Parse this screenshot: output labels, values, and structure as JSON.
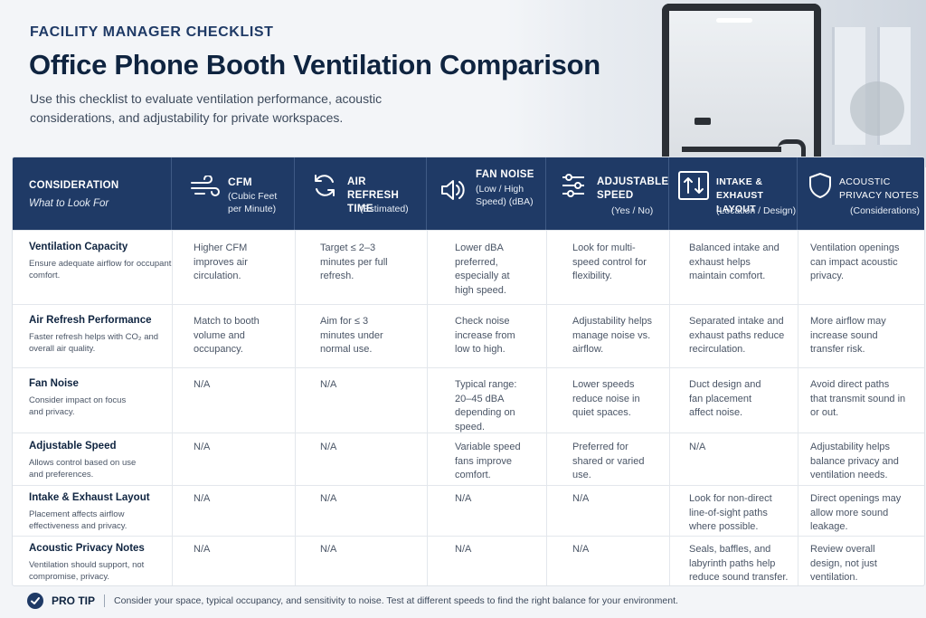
{
  "header": {
    "eyebrow": "FACILITY MANAGER CHECKLIST",
    "title": "Office Phone Booth Ventilation Comparison",
    "intro": "Use this checklist to evaluate ventilation performance, acoustic considerations, and adjustability for private workspaces."
  },
  "columns": [
    {
      "label": "CONSIDERATION",
      "sub": "What to Look For",
      "icon": "none"
    },
    {
      "label": "CFM",
      "sub": "(Cubic Feet per Minute)",
      "icon": "airflow-icon"
    },
    {
      "label": "AIR REFRESH TIME",
      "sub": "(Estimated)",
      "icon": "refresh-icon"
    },
    {
      "label": "FAN NOISE",
      "sub": "(Low / High Speed) (dBA)",
      "icon": "speaker-icon"
    },
    {
      "label": "ADJUSTABLE SPEED",
      "sub": "(Yes / No)",
      "icon": "sliders-icon"
    },
    {
      "label": "INTAKE & EXHAUST LAYOUT",
      "sub": "(Location / Design)",
      "icon": "arrows-updown-icon"
    },
    {
      "label": "ACOUSTIC PRIVACY NOTES",
      "sub": "(Considerations)",
      "icon": "shield-icon"
    }
  ],
  "rows": [
    {
      "name": "Ventilation Capacity",
      "desc": "Ensure adequate airflow for occupant comfort.",
      "cells": [
        "Higher CFM improves air circulation.",
        "Target ≤ 2–3 minutes per full refresh.",
        "Lower dBA preferred, especially at high speed.",
        "Look for multi-speed control for flexibility.",
        "Balanced intake and exhaust helps maintain comfort.",
        "Ventilation openings can impact acoustic privacy."
      ]
    },
    {
      "name": "Air Refresh Performance",
      "desc": "Faster refresh helps with CO₂ and overall air quality.",
      "cells": [
        "Match to booth volume and occupancy.",
        "Aim for ≤ 3 minutes under normal use.",
        "Check noise increase from low to high.",
        "Adjustability helps manage noise vs. airflow.",
        "Separated intake and exhaust paths reduce recirculation.",
        "More airflow may increase sound transfer risk."
      ]
    },
    {
      "name": "Fan Noise",
      "desc": "Consider impact on focus and privacy.",
      "cells": [
        "N/A",
        "N/A",
        "Typical range: 20–45 dBA depending on speed.",
        "Lower speeds reduce noise in quiet spaces.",
        "Duct design and fan placement affect noise.",
        "Avoid direct paths that transmit sound in or out."
      ]
    },
    {
      "name": "Adjustable Speed",
      "desc": "Allows control based on use and preferences.",
      "cells": [
        "N/A",
        "N/A",
        "Variable speed fans improve comfort.",
        "Preferred for shared or varied use.",
        "N/A",
        "Adjustability helps balance privacy and ventilation needs."
      ]
    },
    {
      "name": "Intake & Exhaust Layout",
      "desc": "Placement affects airflow effectiveness and privacy.",
      "cells": [
        "N/A",
        "N/A",
        "N/A",
        "N/A",
        "Look for non-direct line-of-sight paths where possible.",
        "Direct openings may allow more sound leakage."
      ]
    },
    {
      "name": "Acoustic Privacy Notes",
      "desc": "Ventilation should support, not compromise, privacy.",
      "cells": [
        "N/A",
        "N/A",
        "N/A",
        "N/A",
        "Seals, baffles, and labyrinth paths help reduce sound transfer.",
        "Review overall design, not just ventilation."
      ]
    }
  ],
  "protip": {
    "label": "PRO TIP",
    "text": "Consider your space, typical occupancy, and sensitivity to noise. Test at different speeds to find the right balance for your environment."
  }
}
